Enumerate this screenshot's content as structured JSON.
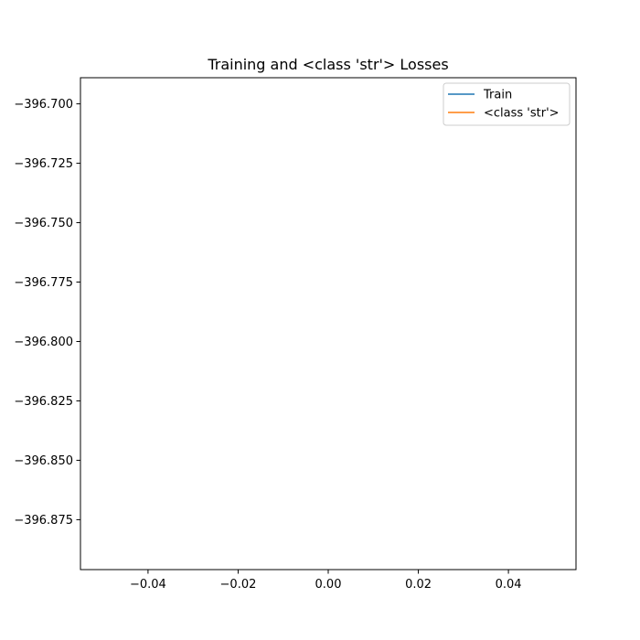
{
  "chart_data": {
    "type": "line",
    "title": "Training and <class 'str'> Losses",
    "xlabel": "",
    "ylabel": "",
    "xlim": [
      -0.055,
      0.055
    ],
    "ylim": [
      -396.896,
      -396.689
    ],
    "x_ticks": [
      -0.04,
      -0.02,
      0.0,
      0.02,
      0.04
    ],
    "x_tick_labels": [
      "−0.04",
      "−0.02",
      "0.00",
      "0.02",
      "0.04"
    ],
    "y_ticks": [
      -396.7,
      -396.725,
      -396.75,
      -396.775,
      -396.8,
      -396.825,
      -396.85,
      -396.875
    ],
    "y_tick_labels": [
      "−396.700",
      "−396.725",
      "−396.750",
      "−396.775",
      "−396.800",
      "−396.825",
      "−396.850",
      "−396.875"
    ],
    "grid": false,
    "legend_position": "upper-right",
    "series": [
      {
        "name": "Train",
        "color": "#1f77b4",
        "x": [],
        "y": []
      },
      {
        "name": "<class 'str'>",
        "color": "#ff7f0e",
        "x": [],
        "y": []
      }
    ]
  }
}
